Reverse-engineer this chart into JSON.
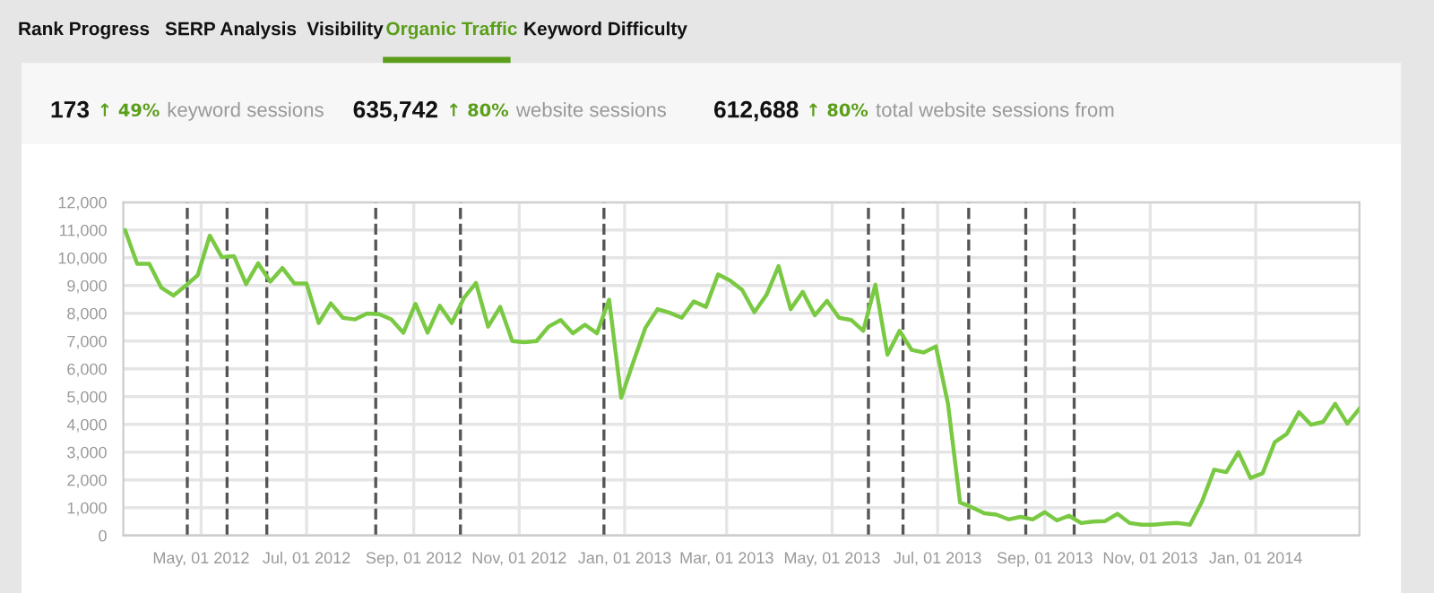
{
  "chart_data": {
    "type": "line",
    "annotations": [
      "Rank Progress",
      "SERP Analysis",
      "Visibility",
      "Organic Traffic",
      "Keyword Difficulty",
      "173",
      "↑ 49%",
      "keyword sessions",
      "635,742",
      "↑ 80%",
      "website sessions",
      "612,688",
      "↑ 80%",
      "total website sessions from"
    ],
    "x": [
      "2012-03-18",
      "2012-03-25",
      "2012-04-01",
      "2012-04-08",
      "2012-04-15",
      "2012-04-22",
      "2012-04-29",
      "2012-05-06",
      "2012-05-13",
      "2012-05-20",
      "2012-05-27",
      "2012-06-03",
      "2012-06-10",
      "2012-06-17",
      "2012-06-24",
      "2012-07-01",
      "2012-07-08",
      "2012-07-15",
      "2012-07-22",
      "2012-07-29",
      "2012-08-05",
      "2012-08-12",
      "2012-08-19",
      "2012-08-26",
      "2012-09-02",
      "2012-09-09",
      "2012-09-16",
      "2012-09-23",
      "2012-09-30",
      "2012-10-07",
      "2012-10-14",
      "2012-10-21",
      "2012-10-28",
      "2012-11-04",
      "2012-11-11",
      "2012-11-18",
      "2012-11-25",
      "2012-12-02",
      "2012-12-09",
      "2012-12-16",
      "2012-12-23",
      "2012-12-30",
      "2013-01-06",
      "2013-01-13",
      "2013-01-20",
      "2013-01-27",
      "2013-02-03",
      "2013-02-10",
      "2013-02-17",
      "2013-02-24",
      "2013-03-03",
      "2013-03-10",
      "2013-03-17",
      "2013-03-24",
      "2013-03-31",
      "2013-04-07",
      "2013-04-14",
      "2013-04-21",
      "2013-04-28",
      "2013-05-05",
      "2013-05-12",
      "2013-05-19",
      "2013-05-26",
      "2013-06-02",
      "2013-06-09",
      "2013-06-16",
      "2013-06-23",
      "2013-06-30",
      "2013-07-07",
      "2013-07-14",
      "2013-07-21",
      "2013-07-28",
      "2013-08-04",
      "2013-08-11",
      "2013-08-18",
      "2013-08-25",
      "2013-09-01",
      "2013-09-08",
      "2013-09-15",
      "2013-09-22",
      "2013-09-29",
      "2013-10-06",
      "2013-10-13",
      "2013-10-20",
      "2013-10-27",
      "2013-11-03",
      "2013-11-10",
      "2013-11-17",
      "2013-11-24",
      "2013-12-01",
      "2013-12-08",
      "2013-12-15",
      "2013-12-22",
      "2013-12-29",
      "2014-01-05",
      "2014-01-12",
      "2014-01-19",
      "2014-01-26",
      "2014-02-02",
      "2014-02-09",
      "2014-02-16",
      "2014-02-23",
      "2014-03-02"
    ],
    "series": [
      {
        "color": "#7ac943",
        "values": [
          11000,
          9780,
          9780,
          8920,
          8640,
          8990,
          9370,
          10800,
          10020,
          10060,
          9050,
          9800,
          9140,
          9630,
          9070,
          9070,
          7650,
          8360,
          7840,
          7780,
          7990,
          7970,
          7780,
          7300,
          8340,
          7300,
          8270,
          7650,
          8550,
          9090,
          7520,
          8230,
          7000,
          6960,
          7000,
          7520,
          7760,
          7280,
          7590,
          7280,
          8490,
          4960,
          6250,
          7480,
          8150,
          8020,
          7840,
          8430,
          8230,
          9400,
          9180,
          8840,
          8040,
          8660,
          9700,
          8150,
          8770,
          7930,
          8450,
          7840,
          7760,
          7370,
          9030,
          6510,
          7370,
          6680,
          6590,
          6810,
          4740,
          1190,
          1010,
          800,
          750,
          580,
          670,
          580,
          840,
          540,
          710,
          450,
          500,
          520,
          780,
          450,
          390,
          390,
          430,
          450,
          390,
          1230,
          2370,
          2280,
          3000,
          2070,
          2240,
          3360,
          3660,
          4440,
          3990,
          4090,
          4740,
          4030,
          4570
        ]
      }
    ],
    "xlim": [
      "2012-03-17",
      "2014-03-02"
    ],
    "xticks": [
      {
        "value": "2012-05-01",
        "label": "May, 01 2012"
      },
      {
        "value": "2012-07-01",
        "label": "Jul, 01 2012"
      },
      {
        "value": "2012-09-01",
        "label": "Sep, 01 2012"
      },
      {
        "value": "2012-11-01",
        "label": "Nov, 01 2012"
      },
      {
        "value": "2013-01-01",
        "label": "Jan, 01 2013"
      },
      {
        "value": "2013-03-01",
        "label": "Mar, 01 2013"
      },
      {
        "value": "2013-05-01",
        "label": "May, 01 2013"
      },
      {
        "value": "2013-07-01",
        "label": "Jul, 01 2013"
      },
      {
        "value": "2013-09-01",
        "label": "Sep, 01 2013"
      },
      {
        "value": "2013-11-01",
        "label": "Nov, 01 2013"
      },
      {
        "value": "2014-01-01",
        "label": "Jan, 01 2014"
      }
    ],
    "ylim": [
      0,
      12000
    ],
    "yticks": [
      0,
      {
        "value": 1000,
        "label": "1,000"
      },
      {
        "value": 2000,
        "label": "2,000"
      },
      {
        "value": 3000,
        "label": "3,000"
      },
      {
        "value": 4000,
        "label": "4,000"
      },
      {
        "value": 5000,
        "label": "5,000"
      },
      {
        "value": 6000,
        "label": "6,000"
      },
      {
        "value": 7000,
        "label": "7,000"
      },
      {
        "value": 8000,
        "label": "8,000"
      },
      {
        "value": 9000,
        "label": "9,000"
      },
      {
        "value": 10000,
        "label": "10,000"
      },
      {
        "value": 11000,
        "label": "11,000"
      },
      {
        "value": 12000,
        "label": "12,000"
      }
    ],
    "ref_lines": [
      {
        "axis": "x",
        "value": "2012-04-23",
        "color": "#555555",
        "line_style": "dashed"
      },
      {
        "axis": "x",
        "value": "2012-05-16",
        "color": "#555555",
        "line_style": "dashed"
      },
      {
        "axis": "x",
        "value": "2012-06-08",
        "color": "#555555",
        "line_style": "dashed"
      },
      {
        "axis": "x",
        "value": "2012-08-10",
        "color": "#555555",
        "line_style": "dashed"
      },
      {
        "axis": "x",
        "value": "2012-09-28",
        "color": "#555555",
        "line_style": "dashed"
      },
      {
        "axis": "x",
        "value": "2012-12-20",
        "color": "#555555",
        "line_style": "dashed"
      },
      {
        "axis": "x",
        "value": "2013-05-22",
        "color": "#555555",
        "line_style": "dashed"
      },
      {
        "axis": "x",
        "value": "2013-06-11",
        "color": "#555555",
        "line_style": "dashed"
      },
      {
        "axis": "x",
        "value": "2013-07-19",
        "color": "#555555",
        "line_style": "dashed"
      },
      {
        "axis": "x",
        "value": "2013-08-21",
        "color": "#555555",
        "line_style": "dashed"
      },
      {
        "axis": "x",
        "value": "2013-09-18",
        "color": "#555555",
        "line_style": "dashed"
      }
    ],
    "grid": true,
    "marker": "none",
    "line_style": "solid"
  }
}
